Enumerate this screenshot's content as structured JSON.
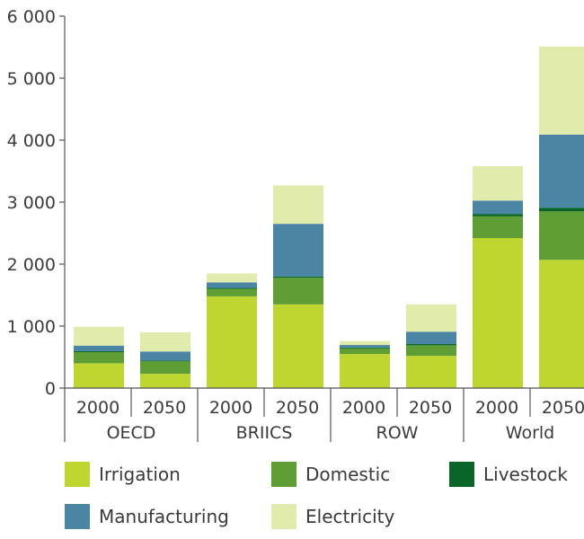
{
  "chart_data": {
    "type": "bar",
    "stacked": true,
    "groups": [
      "OECD",
      "BRIICS",
      "ROW",
      "World"
    ],
    "categories": [
      "2000",
      "2050",
      "2000",
      "2050",
      "2000",
      "2050",
      "2000",
      "2050"
    ],
    "y_ticks": [
      "0",
      "1 000",
      "2 000",
      "3 000",
      "4 000",
      "5 000",
      "6 000"
    ],
    "ylim": [
      0,
      6000
    ],
    "grid": false,
    "legend_position": "bottom",
    "series": [
      {
        "name": "Irrigation",
        "color": "#bfd630",
        "values": [
          400,
          230,
          1480,
          1350,
          550,
          520,
          2420,
          2070
        ]
      },
      {
        "name": "Domestic",
        "color": "#5e9e34",
        "values": [
          180,
          200,
          120,
          430,
          90,
          170,
          350,
          780
        ]
      },
      {
        "name": "Livestock",
        "color": "#0a6628",
        "values": [
          15,
          15,
          15,
          20,
          15,
          20,
          40,
          60
        ]
      },
      {
        "name": "Manufacturing",
        "color": "#4a86a3",
        "values": [
          90,
          145,
          90,
          850,
          40,
          200,
          215,
          1180
        ]
      },
      {
        "name": "Electricity",
        "color": "#e1ebac",
        "values": [
          305,
          310,
          145,
          620,
          65,
          440,
          555,
          1420
        ]
      }
    ]
  }
}
